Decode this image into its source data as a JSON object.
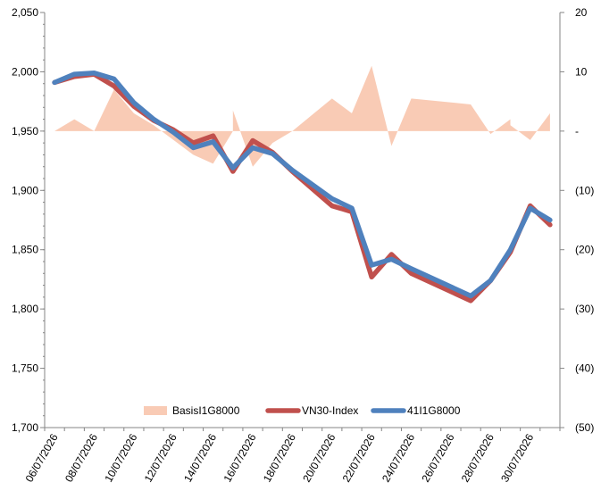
{
  "chart_data": {
    "type": "line",
    "title": "",
    "xlabel": "",
    "ylabel": "",
    "y2label": "",
    "grid": false,
    "legend_position": "bottom-center",
    "x": [
      "06/07/2026",
      "07/07/2026",
      "08/07/2026",
      "09/07/2026",
      "10/07/2026",
      "11/07/2026",
      "12/07/2026",
      "13/07/2026",
      "14/07/2026",
      "15/07/2026",
      "16/07/2026",
      "17/07/2026",
      "18/07/2026",
      "19/07/2026",
      "20/07/2026",
      "21/07/2026",
      "22/07/2026",
      "23/07/2026",
      "24/07/2026",
      "25/07/2026",
      "26/07/2026",
      "27/07/2026",
      "28/07/2026",
      "29/07/2026",
      "30/07/2026",
      "31/07/2026"
    ],
    "x_tick_labels": [
      "06/07/2026",
      "08/07/2026",
      "10/07/2026",
      "12/07/2026",
      "14/07/2026",
      "16/07/2026",
      "18/07/2026",
      "20/07/2026",
      "22/07/2026",
      "24/07/2026",
      "26/07/2026",
      "28/07/2026",
      "30/07/2026"
    ],
    "y_left": {
      "range": [
        1700,
        2050
      ],
      "ticks": [
        "1,700",
        "1,750",
        "1,800",
        "1,850",
        "1,900",
        "1,950",
        "2,000",
        "2,050"
      ]
    },
    "y_right": {
      "range": [
        -50,
        20
      ],
      "ticks": [
        "(50)",
        "(40)",
        "(30)",
        "(20)",
        "(10)",
        "-",
        "10",
        "20"
      ]
    },
    "series": [
      {
        "name": "BasisI1G8000",
        "type": "area",
        "axis": "right",
        "color": "#f9cbb5",
        "points": [
          [
            "06/07/2026",
            0
          ],
          [
            "07/07/2026",
            2
          ],
          [
            "08/07/2026",
            0
          ],
          [
            "09/07/2026",
            7
          ],
          [
            "10/07/2026",
            3
          ],
          [
            "11/07/2026",
            1
          ],
          [
            "13/07/2026",
            -4
          ],
          [
            "14/07/2026",
            -5.5
          ],
          [
            "15/07/2026",
            0
          ],
          [
            "15/07/2026",
            3.5
          ],
          [
            "16/07/2026",
            -6
          ],
          [
            "17/07/2026",
            -2
          ],
          [
            "18/07/2026",
            0
          ],
          [
            "20/07/2026",
            5.5
          ],
          [
            "21/07/2026",
            3
          ],
          [
            "22/07/2026",
            11
          ],
          [
            "23/07/2026",
            -2.5
          ],
          [
            "24/07/2026",
            5.5
          ],
          [
            "27/07/2026",
            4.5
          ],
          [
            "28/07/2026",
            -0.5
          ],
          [
            "29/07/2026",
            2
          ],
          [
            "29/07/2026",
            1
          ],
          [
            "30/07/2026",
            -1.5
          ],
          [
            "31/07/2026",
            3
          ]
        ]
      },
      {
        "name": "VN30-Index",
        "type": "line",
        "axis": "left",
        "color": "#c0504d",
        "points": [
          [
            "06/07/2026",
            1991
          ],
          [
            "07/07/2026",
            1996
          ],
          [
            "08/07/2026",
            1998
          ],
          [
            "09/07/2026",
            1988
          ],
          [
            "10/07/2026",
            1971
          ],
          [
            "11/07/2026",
            1959
          ],
          [
            "12/07/2026",
            1951
          ],
          [
            "13/07/2026",
            1940
          ],
          [
            "14/07/2026",
            1946
          ],
          [
            "15/07/2026",
            1916
          ],
          [
            "16/07/2026",
            1942
          ],
          [
            "17/07/2026",
            1932
          ],
          [
            "18/07/2026",
            1916
          ],
          [
            "20/07/2026",
            1887
          ],
          [
            "21/07/2026",
            1882
          ],
          [
            "22/07/2026",
            1827
          ],
          [
            "23/07/2026",
            1846
          ],
          [
            "24/07/2026",
            1830
          ],
          [
            "27/07/2026",
            1807
          ],
          [
            "28/07/2026",
            1824
          ],
          [
            "29/07/2026",
            1848
          ],
          [
            "30/07/2026",
            1887
          ],
          [
            "31/07/2026",
            1871
          ]
        ]
      },
      {
        "name": "41I1G8000",
        "type": "line",
        "axis": "left",
        "color": "#4f81bd",
        "points": [
          [
            "06/07/2026",
            1991
          ],
          [
            "07/07/2026",
            1998
          ],
          [
            "08/07/2026",
            1999
          ],
          [
            "09/07/2026",
            1994
          ],
          [
            "10/07/2026",
            1974
          ],
          [
            "11/07/2026",
            1960
          ],
          [
            "12/07/2026",
            1949
          ],
          [
            "13/07/2026",
            1936
          ],
          [
            "14/07/2026",
            1941
          ],
          [
            "15/07/2026",
            1919
          ],
          [
            "16/07/2026",
            1936
          ],
          [
            "17/07/2026",
            1931
          ],
          [
            "18/07/2026",
            1917
          ],
          [
            "20/07/2026",
            1893
          ],
          [
            "21/07/2026",
            1885
          ],
          [
            "22/07/2026",
            1837
          ],
          [
            "23/07/2026",
            1842
          ],
          [
            "24/07/2026",
            1834
          ],
          [
            "27/07/2026",
            1811
          ],
          [
            "28/07/2026",
            1824
          ],
          [
            "29/07/2026",
            1850
          ],
          [
            "30/07/2026",
            1885
          ],
          [
            "31/07/2026",
            1875
          ]
        ]
      }
    ]
  }
}
